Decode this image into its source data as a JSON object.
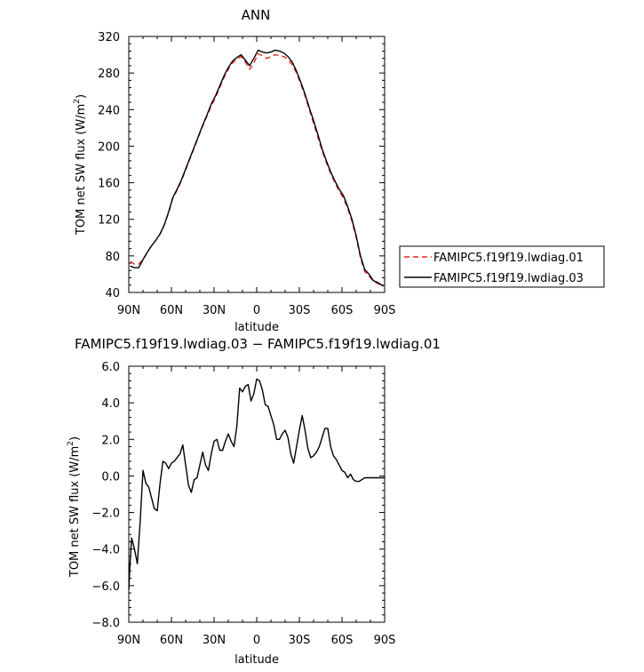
{
  "chart_data": [
    {
      "type": "line",
      "title": "ANN",
      "xlabel": "latitude",
      "ylabel": "TOM net SW flux (W/m²)",
      "xlim": [
        90,
        -90
      ],
      "ylim": [
        40,
        320
      ],
      "x_ticks": [
        90,
        60,
        30,
        0,
        -30,
        -60,
        -90
      ],
      "x_tick_labels": [
        "90N",
        "60N",
        "30N",
        "0",
        "30S",
        "60S",
        "90S"
      ],
      "y_ticks": [
        40,
        80,
        120,
        160,
        200,
        240,
        280,
        320
      ],
      "y_tick_labels": [
        "40",
        "80",
        "120",
        "160",
        "200",
        "240",
        "280",
        "320"
      ],
      "legend_position": "right",
      "series": [
        {
          "name": "FAMIPC5.f19f19.lwdiag.01",
          "color": "#e8231d",
          "dash": "dashed",
          "x": [
            89,
            86,
            83,
            80,
            77,
            74,
            71,
            68,
            65,
            62,
            59,
            56,
            53,
            50,
            47,
            44,
            41,
            38,
            35,
            32,
            29,
            26,
            23,
            20,
            17,
            14,
            11,
            8,
            5,
            2,
            -1,
            -4,
            -7,
            -10,
            -13,
            -16,
            -19,
            -22,
            -25,
            -28,
            -31,
            -34,
            -37,
            -40,
            -43,
            -46,
            -49,
            -52,
            -55,
            -58,
            -61,
            -64,
            -67,
            -70,
            -73,
            -76,
            -79,
            -82,
            -85,
            -88,
            -89
          ],
          "values": [
            74,
            71,
            71,
            76,
            84,
            91,
            97,
            104,
            114,
            127,
            143,
            152,
            162,
            174,
            186,
            198,
            210,
            222,
            233,
            244,
            253,
            264,
            275,
            284,
            291,
            295,
            298,
            292,
            284,
            291,
            301,
            299,
            296,
            298,
            300,
            299,
            298,
            295,
            289,
            280,
            268,
            255,
            240,
            225,
            210,
            195,
            182,
            170,
            160,
            151,
            143,
            132,
            118,
            100,
            78,
            63,
            58,
            52,
            50,
            47,
            46
          ]
        },
        {
          "name": "FAMIPC5.f19f19.lwdiag.03",
          "color": "#000000",
          "dash": "solid",
          "x": [
            89,
            86,
            83,
            80,
            77,
            74,
            71,
            68,
            65,
            62,
            59,
            56,
            53,
            50,
            47,
            44,
            41,
            38,
            35,
            32,
            29,
            26,
            23,
            20,
            17,
            14,
            11,
            8,
            5,
            2,
            -1,
            -4,
            -7,
            -10,
            -13,
            -16,
            -19,
            -22,
            -25,
            -28,
            -31,
            -34,
            -37,
            -40,
            -43,
            -46,
            -49,
            -52,
            -55,
            -58,
            -61,
            -64,
            -67,
            -70,
            -73,
            -76,
            -79,
            -82,
            -85,
            -88,
            -89
          ],
          "values": [
            69,
            67,
            67,
            76,
            84,
            91,
            97,
            104,
            114,
            128,
            144,
            153,
            163,
            175,
            187,
            199,
            211,
            223,
            234,
            246,
            255,
            266,
            277,
            286,
            293,
            297,
            300,
            294,
            288,
            296,
            305,
            303,
            302,
            303,
            305,
            304,
            302,
            298,
            292,
            282,
            270,
            257,
            242,
            228,
            213,
            197,
            184,
            172,
            162,
            153,
            146,
            134,
            120,
            102,
            80,
            65,
            60,
            53,
            51,
            48,
            47
          ]
        }
      ]
    },
    {
      "type": "line",
      "title": "FAMIPC5.f19f19.lwdiag.03 − FAMIPC5.f19f19.lwdiag.01",
      "xlabel": "latitude",
      "ylabel": "TOM net SW flux (W/m²)",
      "xlim": [
        90,
        -90
      ],
      "ylim": [
        -8,
        6
      ],
      "x_ticks": [
        90,
        60,
        30,
        0,
        -30,
        -60,
        -90
      ],
      "x_tick_labels": [
        "90N",
        "60N",
        "30N",
        "0",
        "30S",
        "60S",
        "90S"
      ],
      "y_ticks": [
        -8,
        -6,
        -4,
        -2,
        0,
        2,
        4,
        6
      ],
      "y_tick_labels": [
        "−8.0",
        "−6.0",
        "−4.0",
        "−2.0",
        "0.0",
        "2.0",
        "4.0",
        "6.0"
      ],
      "series": [
        {
          "color": "#000000",
          "dash": "solid",
          "x": [
            90,
            89,
            88,
            86,
            84,
            82,
            80,
            78,
            76,
            74,
            72,
            70,
            68,
            66,
            64,
            62,
            60,
            58,
            56,
            54,
            52,
            50,
            48,
            46,
            44,
            42,
            40,
            38,
            36,
            34,
            32,
            30,
            28,
            26,
            24,
            22,
            20,
            18,
            16,
            14,
            12,
            10,
            8,
            6,
            4,
            2,
            0,
            -2,
            -4,
            -6,
            -8,
            -10,
            -12,
            -14,
            -16,
            -18,
            -20,
            -22,
            -24,
            -26,
            -28,
            -30,
            -32,
            -34,
            -36,
            -38,
            -40,
            -42,
            -44,
            -46,
            -48,
            -50,
            -52,
            -54,
            -56,
            -58,
            -60,
            -62,
            -64,
            -66,
            -68,
            -70,
            -72,
            -74,
            -76,
            -78,
            -80,
            -82,
            -84,
            -86,
            -88,
            -90
          ],
          "values": [
            -6.2,
            -4.6,
            -3.4,
            -4.0,
            -4.8,
            -2.5,
            0.3,
            -0.4,
            -0.6,
            -1.2,
            -1.8,
            -1.9,
            -0.4,
            0.8,
            0.7,
            0.4,
            0.7,
            0.8,
            1.0,
            1.2,
            1.7,
            0.6,
            -0.5,
            -0.9,
            -0.2,
            -0.1,
            0.6,
            1.3,
            0.6,
            0.3,
            1.2,
            1.9,
            2.0,
            1.4,
            1.4,
            1.9,
            2.3,
            1.9,
            1.6,
            2.7,
            4.8,
            4.6,
            4.9,
            5.0,
            4.1,
            4.5,
            5.3,
            5.2,
            4.7,
            3.9,
            3.8,
            3.3,
            2.8,
            2.0,
            2.0,
            2.3,
            2.5,
            2.1,
            1.2,
            0.7,
            1.6,
            2.5,
            3.3,
            2.5,
            1.5,
            1.0,
            1.1,
            1.3,
            1.6,
            2.1,
            2.6,
            2.6,
            1.6,
            1.1,
            0.9,
            0.6,
            0.3,
            0.2,
            -0.1,
            0.1,
            -0.2,
            -0.3,
            -0.3,
            -0.2,
            -0.1,
            -0.1,
            -0.1,
            -0.1,
            -0.1,
            -0.1,
            -0.1,
            -0.1
          ]
        }
      ]
    }
  ]
}
